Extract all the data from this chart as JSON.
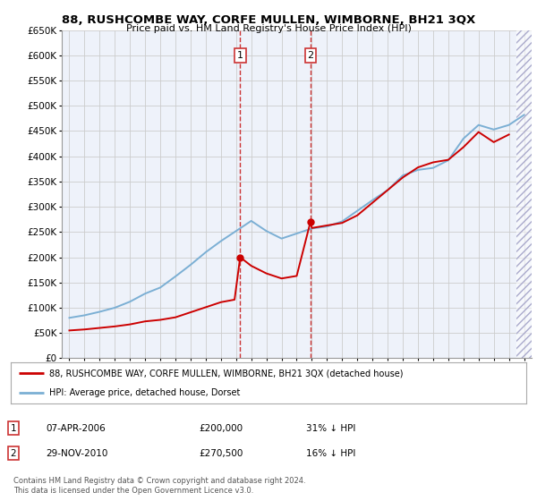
{
  "title": "88, RUSHCOMBE WAY, CORFE MULLEN, WIMBORNE, BH21 3QX",
  "subtitle": "Price paid vs. HM Land Registry's House Price Index (HPI)",
  "legend_line1": "88, RUSHCOMBE WAY, CORFE MULLEN, WIMBORNE, BH21 3QX (detached house)",
  "legend_line2": "HPI: Average price, detached house, Dorset",
  "footer": "Contains HM Land Registry data © Crown copyright and database right 2024.\nThis data is licensed under the Open Government Licence v3.0.",
  "purchase1_date": "07-APR-2006",
  "purchase1_price": "£200,000",
  "purchase1_hpi": "31% ↓ HPI",
  "purchase2_date": "29-NOV-2010",
  "purchase2_price": "£270,500",
  "purchase2_hpi": "16% ↓ HPI",
  "purchase1_year": 2006.27,
  "purchase1_value": 200000,
  "purchase2_year": 2010.91,
  "purchase2_value": 270500,
  "red_color": "#cc0000",
  "blue_color": "#7bafd4",
  "marker_box_color": "#cc3333",
  "grid_color": "#cccccc",
  "bg_color": "#ffffff",
  "plot_bg_color": "#eef2fa",
  "ylim": [
    0,
    650000
  ],
  "hpi_years": [
    1995,
    1996,
    1997,
    1998,
    1999,
    2000,
    2001,
    2002,
    2003,
    2004,
    2005,
    2006,
    2007,
    2008,
    2009,
    2010,
    2011,
    2012,
    2013,
    2014,
    2015,
    2016,
    2017,
    2018,
    2019,
    2020,
    2021,
    2022,
    2023,
    2024,
    2025
  ],
  "hpi_values": [
    80000,
    85000,
    92000,
    100000,
    112000,
    128000,
    140000,
    162000,
    185000,
    210000,
    232000,
    252000,
    272000,
    252000,
    237000,
    247000,
    257000,
    261000,
    271000,
    292000,
    313000,
    333000,
    362000,
    373000,
    377000,
    392000,
    435000,
    462000,
    453000,
    462000,
    482000
  ],
  "red_years": [
    1995,
    1996,
    1997,
    1998,
    1999,
    2000,
    2001,
    2002,
    2003,
    2004,
    2005,
    2005.9,
    2006.27,
    2007,
    2008,
    2009,
    2010,
    2010.91,
    2011,
    2012,
    2013,
    2014,
    2015,
    2016,
    2017,
    2018,
    2019,
    2020,
    2021,
    2022,
    2023,
    2024
  ],
  "red_values": [
    55000,
    57000,
    60000,
    63000,
    67000,
    73000,
    76000,
    81000,
    91000,
    101000,
    111000,
    116000,
    200000,
    183000,
    168000,
    158000,
    163000,
    270500,
    258000,
    263000,
    268000,
    283000,
    308000,
    333000,
    358000,
    378000,
    388000,
    393000,
    418000,
    448000,
    428000,
    443000
  ]
}
